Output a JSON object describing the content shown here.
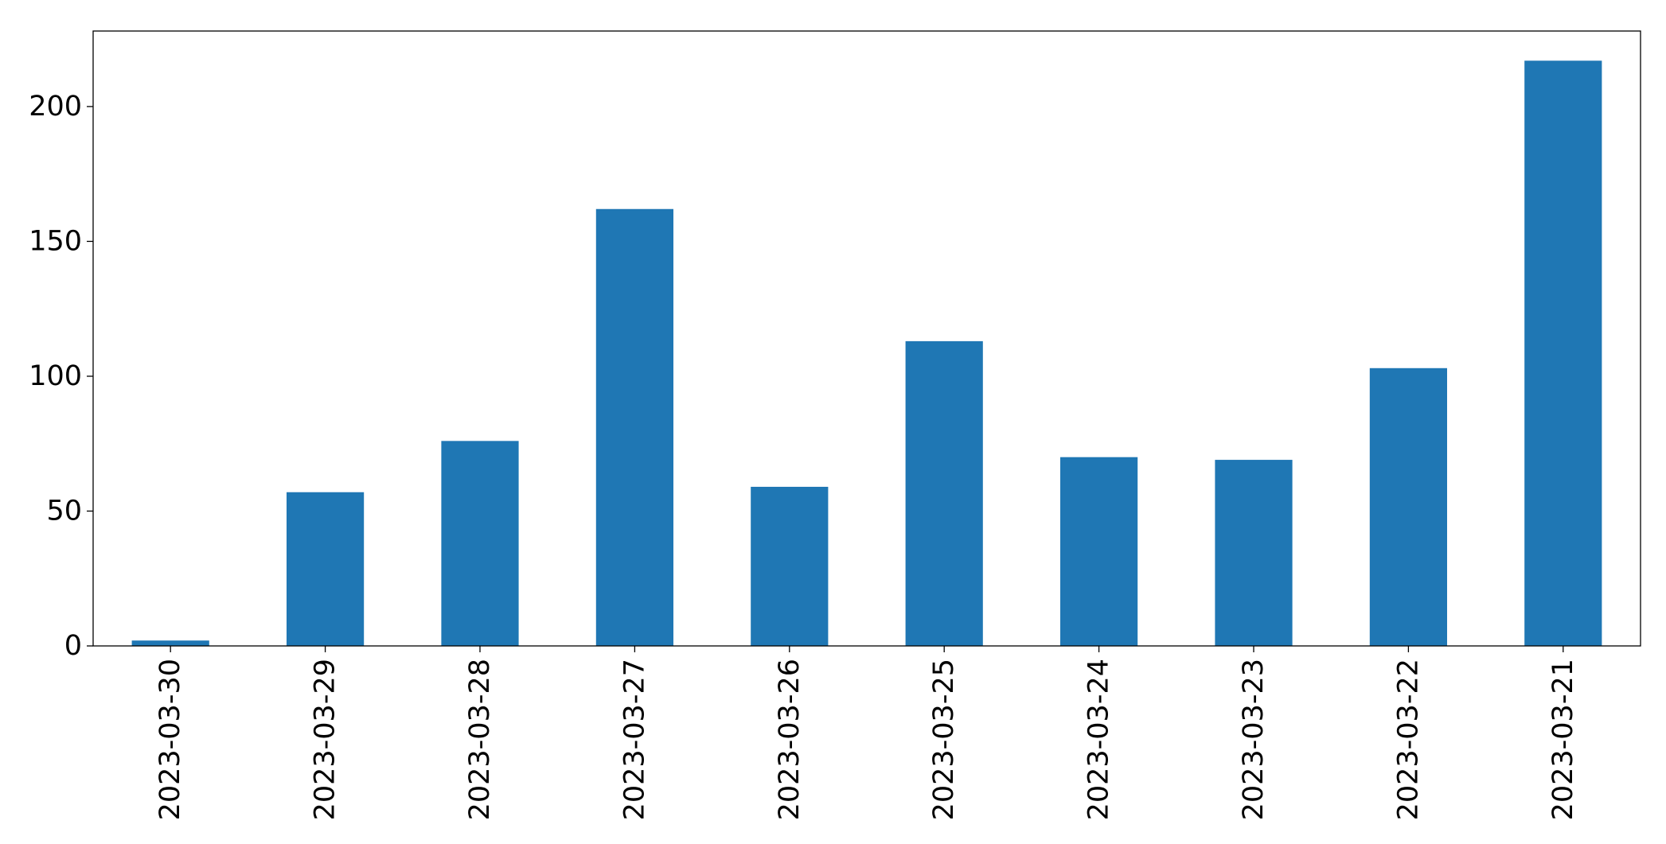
{
  "chart_data": {
    "type": "bar",
    "categories": [
      "2023-03-30",
      "2023-03-29",
      "2023-03-28",
      "2023-03-27",
      "2023-03-26",
      "2023-03-25",
      "2023-03-24",
      "2023-03-23",
      "2023-03-22",
      "2023-03-21"
    ],
    "values": [
      2,
      57,
      76,
      162,
      59,
      113,
      70,
      69,
      103,
      217
    ],
    "title": "",
    "xlabel": "",
    "ylabel": "",
    "ylim": [
      0,
      228
    ],
    "yticks": [
      0,
      50,
      100,
      150,
      200
    ],
    "grid": false,
    "legend": "none",
    "bar_color": "#1f77b4"
  }
}
